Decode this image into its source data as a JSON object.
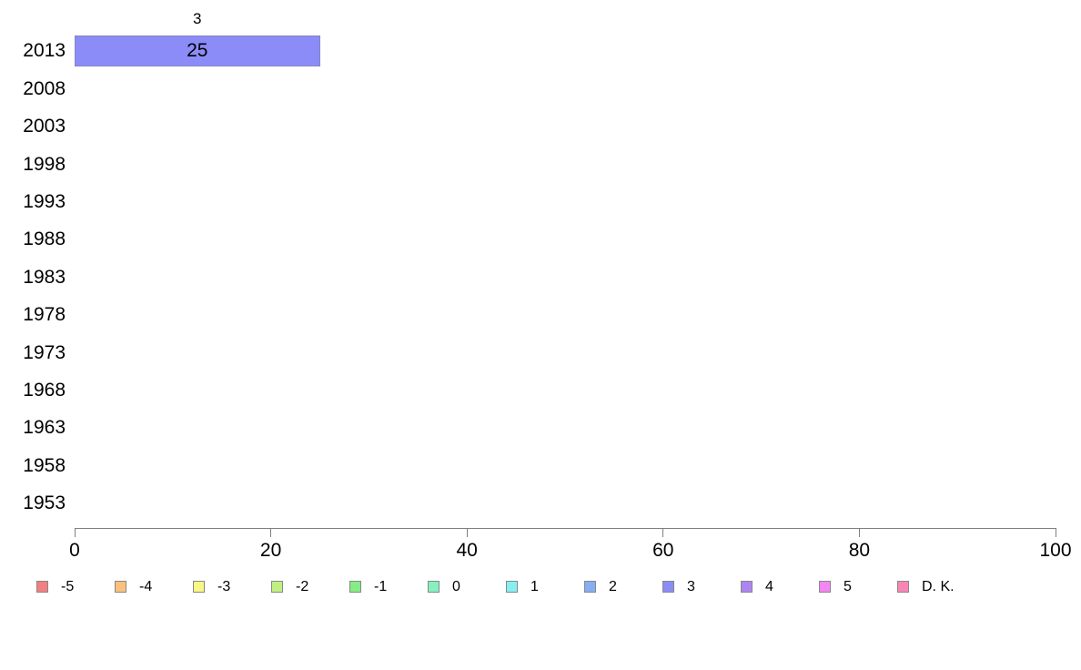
{
  "chart_data": {
    "type": "bar",
    "orientation": "horizontal",
    "title": "",
    "xlabel": "",
    "ylabel": "",
    "categories": [
      "2013",
      "2008",
      "2003",
      "1998",
      "1993",
      "1988",
      "1983",
      "1978",
      "1973",
      "1968",
      "1963",
      "1958",
      "1953"
    ],
    "series": [
      {
        "name": "3",
        "color": "#8c8cf8",
        "border_color": "#8585bd",
        "values": [
          25,
          0,
          0,
          0,
          0,
          0,
          0,
          0,
          0,
          0,
          0,
          0,
          0
        ]
      }
    ],
    "bar_annotations": [
      {
        "category": "2013",
        "series_label": "3",
        "value_label": "25"
      }
    ],
    "xlim": [
      0,
      100
    ],
    "x_ticks": [
      "0",
      "20",
      "40",
      "60",
      "80",
      "100"
    ],
    "grid": false,
    "legend": {
      "position": "bottom",
      "items": [
        {
          "label": "-5",
          "color": "#f28080"
        },
        {
          "label": "-4",
          "color": "#fac17e"
        },
        {
          "label": "-3",
          "color": "#f7f785"
        },
        {
          "label": "-2",
          "color": "#c1f080"
        },
        {
          "label": "-1",
          "color": "#86ec86"
        },
        {
          "label": "0",
          "color": "#86f0be"
        },
        {
          "label": "1",
          "color": "#86f0f0"
        },
        {
          "label": "2",
          "color": "#86aff2"
        },
        {
          "label": "3",
          "color": "#8c8cf8"
        },
        {
          "label": "4",
          "color": "#ad85f3"
        },
        {
          "label": "5",
          "color": "#f286f2"
        },
        {
          "label": "D. K.",
          "color": "#f786b5"
        }
      ]
    }
  }
}
